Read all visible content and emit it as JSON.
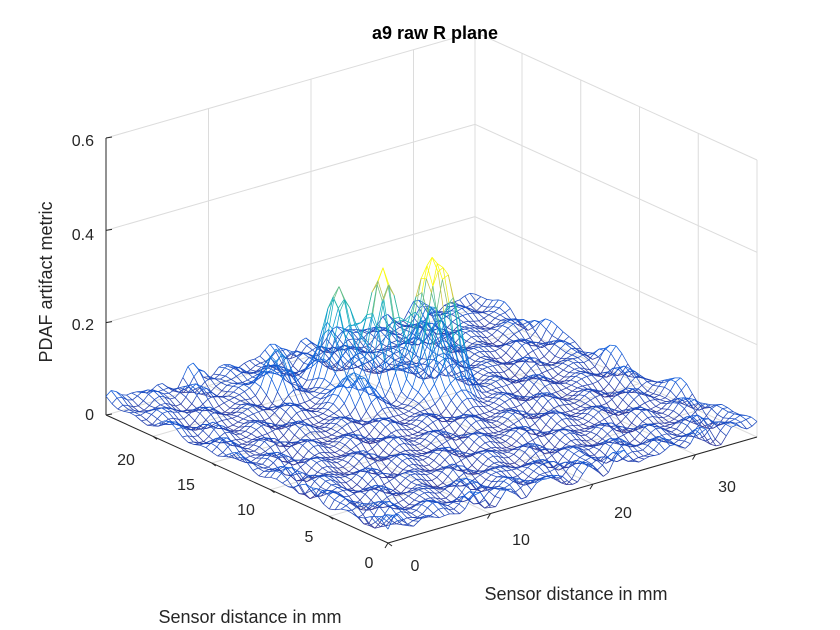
{
  "figure": {
    "title": "a9 raw R plane",
    "xlabel": "Sensor distance in mm",
    "ylabel": "Sensor distance in mm",
    "zlabel": "PDAF artifact metric"
  },
  "chart_data": {
    "type": "surface",
    "title": "a9 raw R plane",
    "xlabel": "Sensor distance in mm",
    "ylabel": "Sensor distance in mm",
    "zlabel": "PDAF artifact metric",
    "xlim": [
      0,
      36
    ],
    "ylim": [
      0,
      24
    ],
    "zlim": [
      0,
      0.6
    ],
    "x_ticks": [
      0,
      10,
      20,
      30
    ],
    "y_ticks": [
      0,
      5,
      10,
      15,
      20
    ],
    "z_ticks": [
      0,
      0.2,
      0.4,
      0.6
    ],
    "x_tick_labels": [
      "0",
      "10",
      "20",
      "30"
    ],
    "y_tick_labels": [
      "0",
      "5",
      "10",
      "15",
      "20"
    ],
    "z_tick_labels": [
      "0",
      "0.2",
      "0.4",
      "0.6"
    ],
    "grid": true,
    "colormap": "parula",
    "background_level": 0.02,
    "peaks": [
      {
        "x": 19,
        "y": 17,
        "z": 0.26
      },
      {
        "x": 21,
        "y": 15,
        "z": 0.24
      },
      {
        "x": 17,
        "y": 19,
        "z": 0.22
      },
      {
        "x": 22.5,
        "y": 14.5,
        "z": 0.19
      },
      {
        "x": 12,
        "y": 20,
        "z": 0.08
      },
      {
        "x": 15,
        "y": 16,
        "z": 0.07
      },
      {
        "x": 26,
        "y": 19,
        "z": 0.1
      }
    ]
  }
}
